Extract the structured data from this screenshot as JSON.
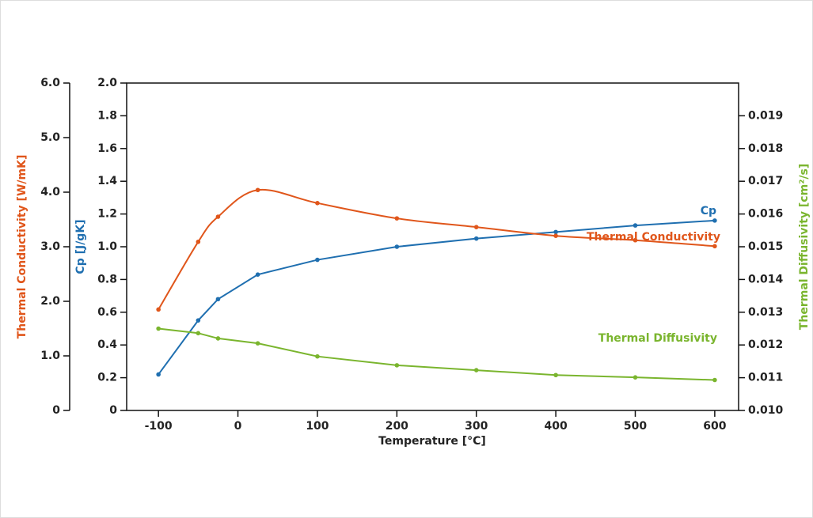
{
  "chart_data": {
    "type": "line",
    "xlabel": "Temperature [°C]",
    "ylabel": "Cp [J/gK]",
    "y2label": "Thermal Diffusivity [cm²/s]",
    "y3label": "Thermal Conductivity [W/mK]",
    "x": [
      -100,
      -50,
      -25,
      25,
      100,
      200,
      300,
      400,
      500,
      600
    ],
    "xlim": [
      -140,
      630
    ],
    "xticks": [
      -100,
      0,
      100,
      200,
      300,
      400,
      500,
      600
    ],
    "ylim": [
      0,
      2
    ],
    "yticks": [
      0,
      0.2,
      0.4,
      0.6,
      0.8,
      {
        "value": 1,
        "label": "1.0"
      },
      1.2,
      1.4,
      1.6,
      1.8,
      {
        "value": 2,
        "label": "2.0"
      }
    ],
    "y2lim": [
      0.01,
      0.02
    ],
    "y2ticks": [
      {
        "value": 0.01,
        "label": "0.010"
      },
      0.011,
      0.012,
      0.013,
      0.014,
      0.015,
      0.016,
      0.017,
      0.018,
      0.019
    ],
    "y3lim": [
      0,
      6
    ],
    "y3ticks": [
      0,
      {
        "value": 1,
        "label": "1.0"
      },
      {
        "value": 2,
        "label": "2.0"
      },
      {
        "value": 3,
        "label": "3.0"
      },
      {
        "value": 4,
        "label": "4.0"
      },
      {
        "value": 5,
        "label": "5.0"
      },
      {
        "value": 6,
        "label": "6.0"
      }
    ],
    "series": [
      {
        "name": "Cp",
        "color": "#1f6fb0",
        "axis": "y",
        "smooth": false,
        "values": [
          0.22,
          0.55,
          0.68,
          0.83,
          0.92,
          1.0,
          1.05,
          1.09,
          1.13,
          1.16
        ]
      },
      {
        "name": "Thermal Conductivity",
        "color": "#e0561b",
        "axis": "y3",
        "smooth": true,
        "values": [
          1.85,
          3.09,
          3.55,
          4.04,
          3.8,
          3.52,
          3.36,
          3.2,
          3.12,
          3.01
        ]
      },
      {
        "name": "Thermal Diffusivity",
        "color": "#7ab52e",
        "axis": "y2",
        "smooth": false,
        "values": [
          0.0125,
          0.01236,
          0.0122,
          0.01205,
          0.01165,
          0.01138,
          0.01123,
          0.01108,
          0.01101,
          0.01093
        ]
      }
    ]
  }
}
